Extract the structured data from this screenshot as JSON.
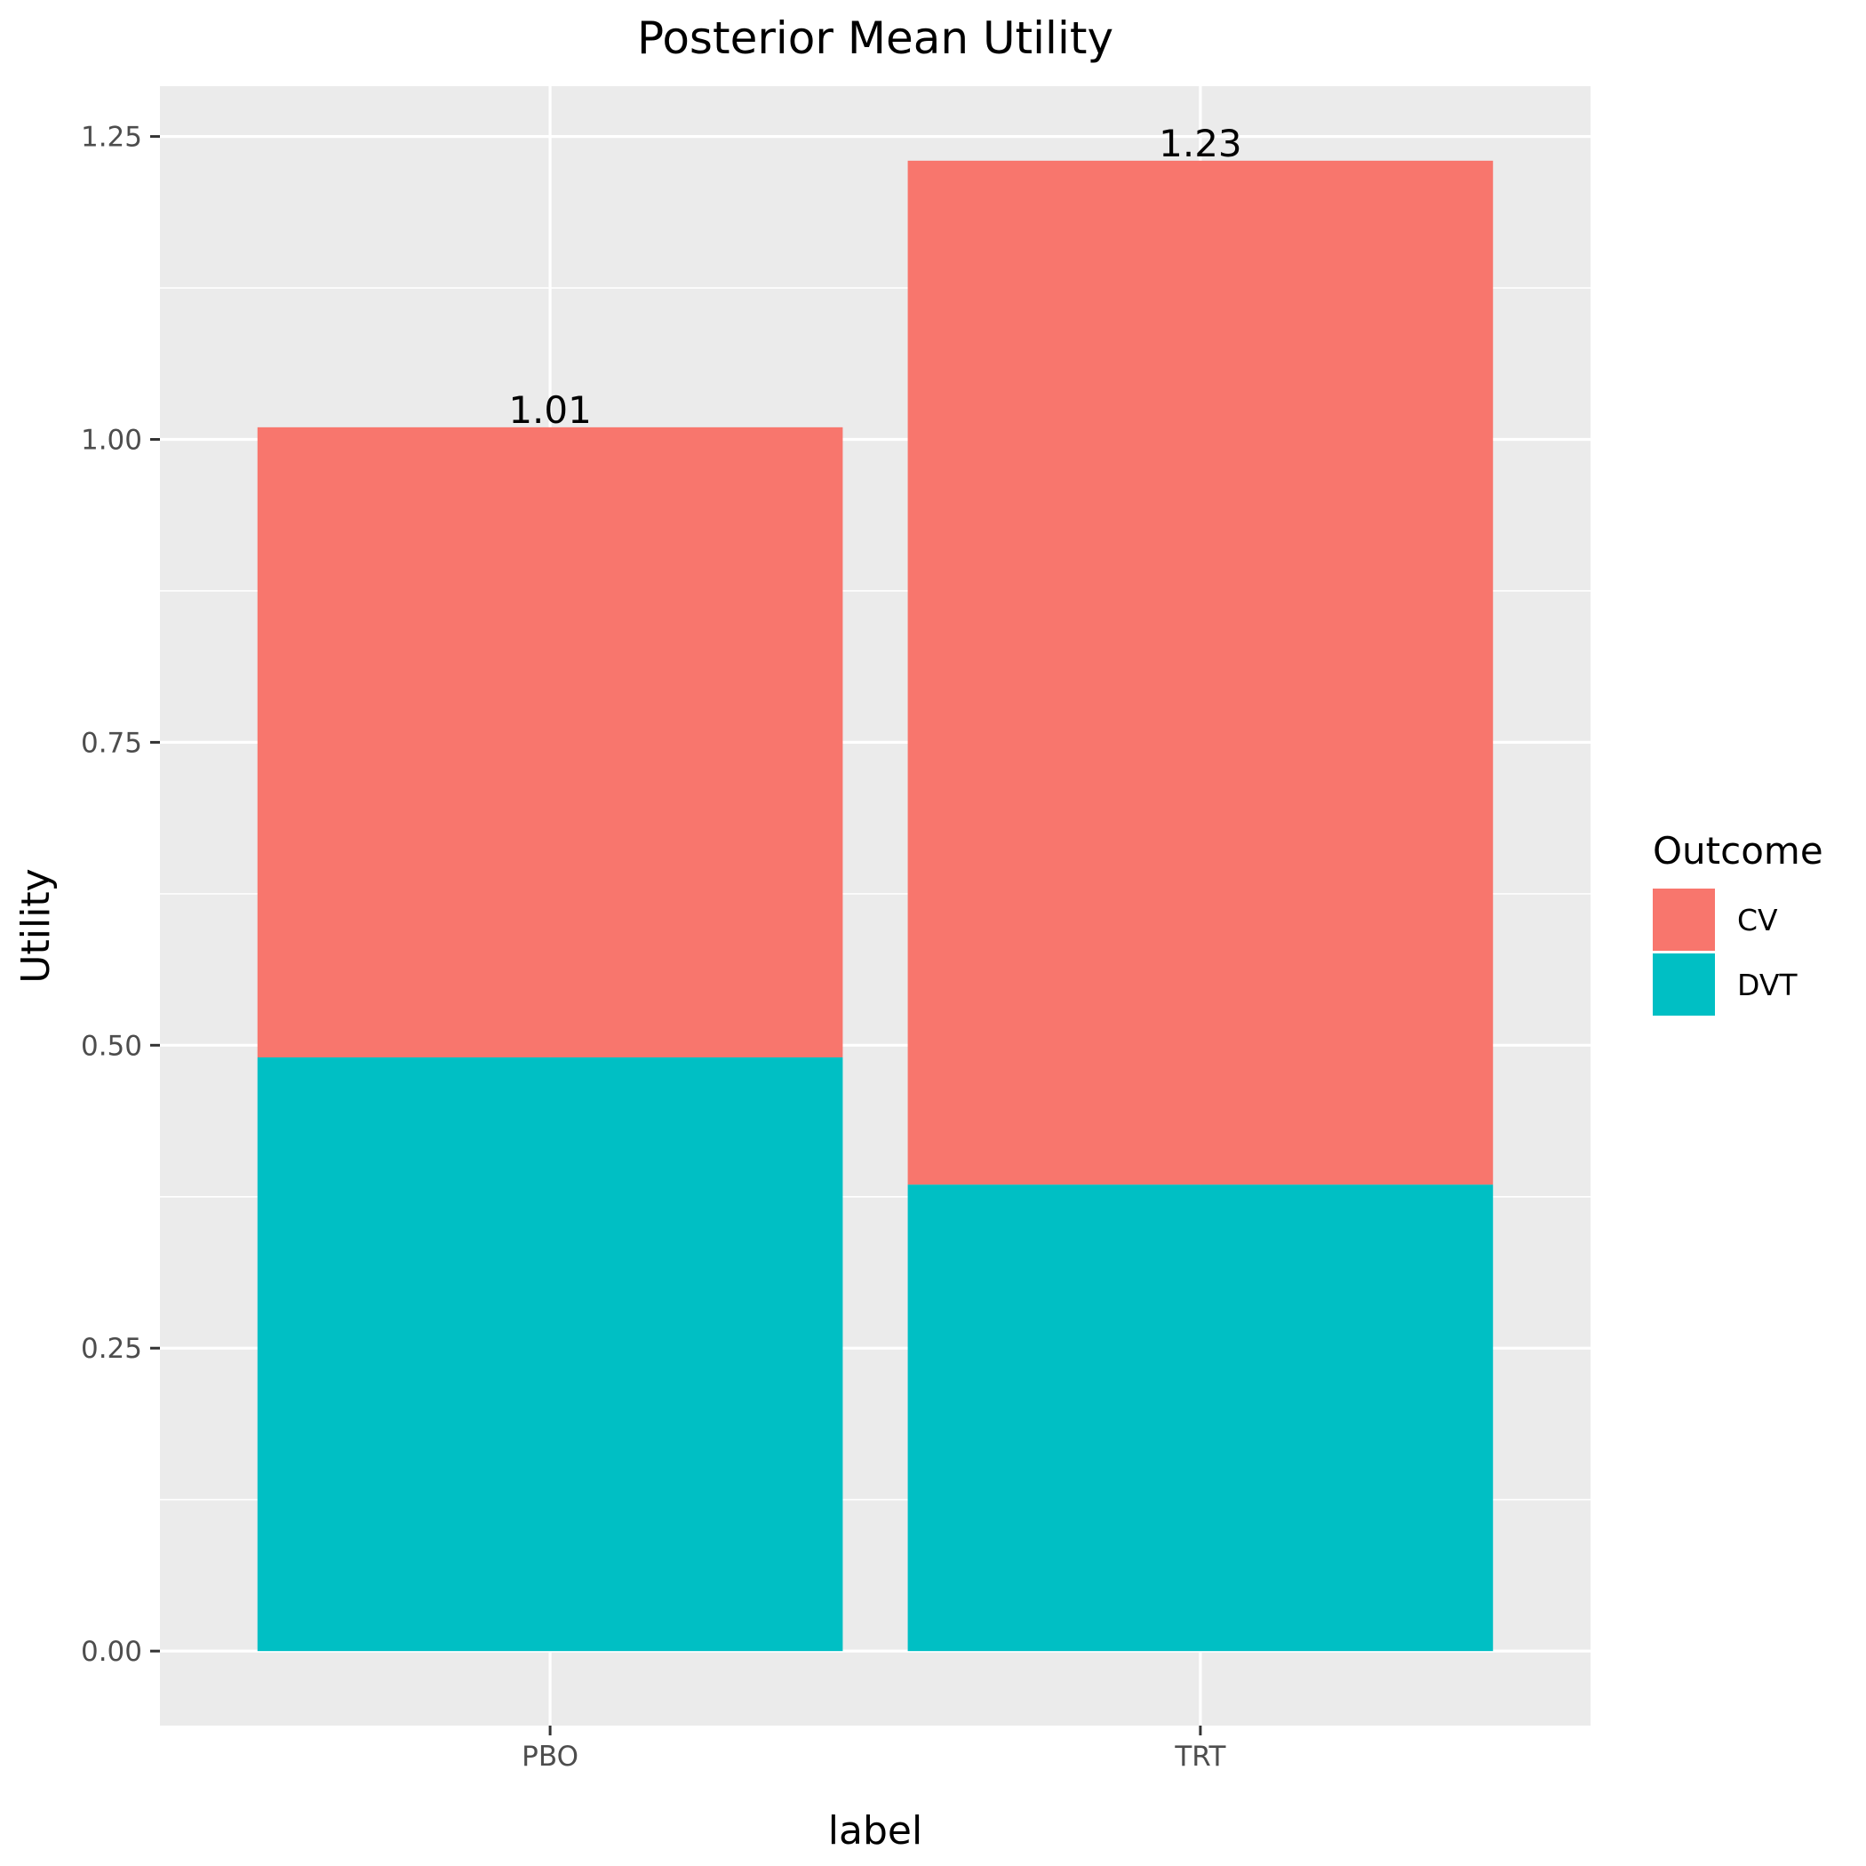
{
  "chart_data": {
    "type": "bar",
    "stacked": true,
    "title": "Posterior Mean Utility",
    "xlabel": "label",
    "ylabel": "Utility",
    "categories": [
      "PBO",
      "TRT"
    ],
    "series": [
      {
        "name": "CV",
        "values": [
          0.52,
          0.845
        ],
        "color": "#F8766D"
      },
      {
        "name": "DVT",
        "values": [
          0.49,
          0.385
        ],
        "color": "#00BFC4"
      }
    ],
    "totals": [
      1.01,
      1.23
    ],
    "total_labels": [
      "1.01",
      "1.23"
    ],
    "ylim": [
      -0.0615,
      1.2915
    ],
    "yticks": [
      0,
      0.25,
      0.5,
      0.75,
      1.0,
      1.25
    ],
    "ytick_labels": [
      "0.00",
      "0.25",
      "0.50",
      "0.75",
      "1.00",
      "1.25"
    ],
    "grid": true,
    "panel_background": "#EBEBEB",
    "legend": {
      "title": "Outcome",
      "position": "right",
      "order": [
        "CV",
        "DVT"
      ]
    }
  }
}
